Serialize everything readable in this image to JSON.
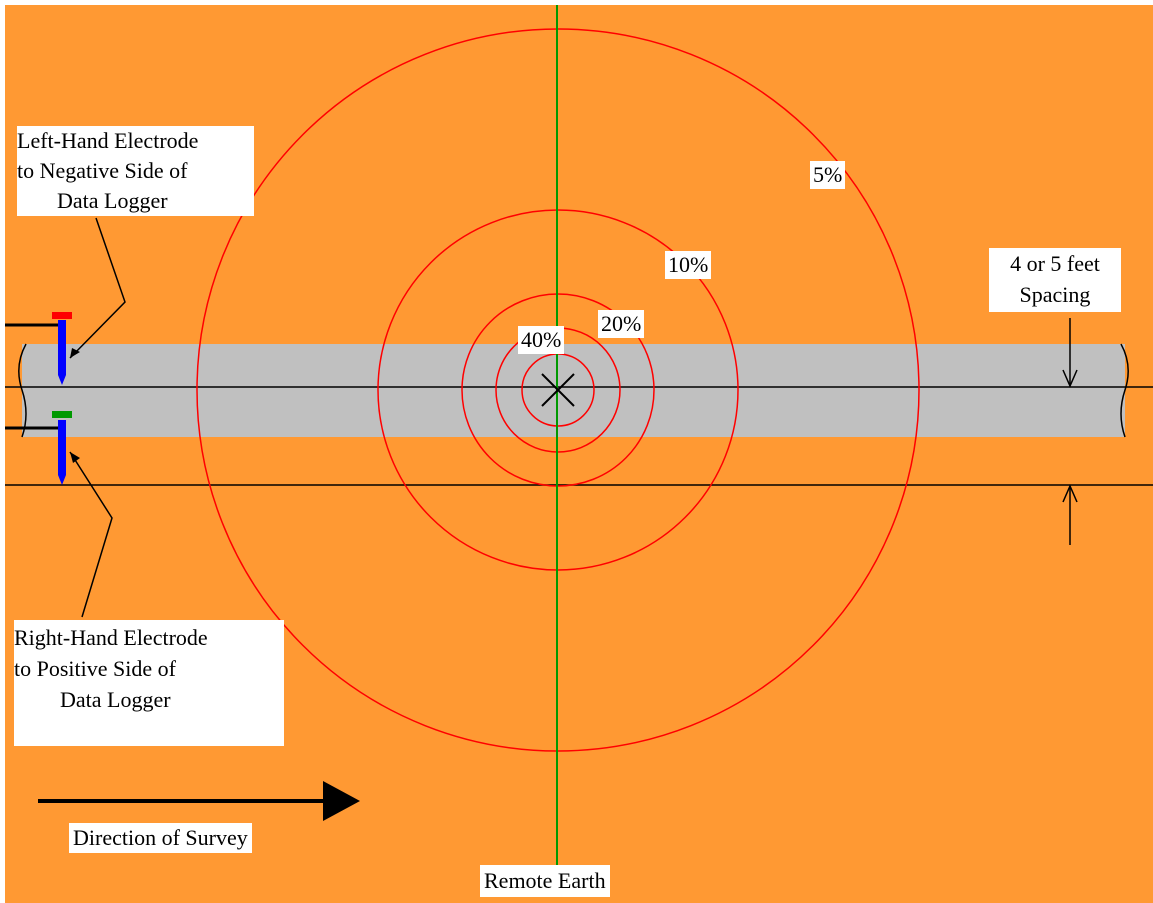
{
  "colors": {
    "background": "#ff9933",
    "pipe": "#c0c0c0",
    "contour": "#ff0000",
    "remote_earth_line": "#009900",
    "electrode_body": "#0000ff",
    "left_cap": "#ff0000",
    "right_cap": "#009900"
  },
  "labels": {
    "left_electrode": [
      "Left-Hand  Electrode",
      "to Negative Side of",
      "Data Logger"
    ],
    "right_electrode": [
      "Right-Hand Electrode",
      "to Positive Side of",
      "Data Logger"
    ],
    "spacing": [
      "4 or 5 feet",
      "Spacing"
    ],
    "direction": "Direction of Survey",
    "remote_earth": "Remote Earth"
  },
  "contours": [
    {
      "label": "5%"
    },
    {
      "label": "10%"
    },
    {
      "label": "20%"
    },
    {
      "label": "40%"
    }
  ]
}
